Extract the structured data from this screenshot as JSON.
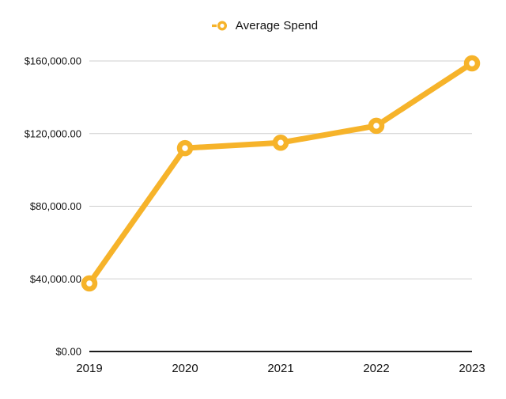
{
  "legend": {
    "items": [
      {
        "label": "Average Spend",
        "color": "#F6B32A"
      }
    ]
  },
  "chart_data": {
    "type": "line",
    "title": "",
    "xlabel": "",
    "ylabel": "",
    "categories": [
      "2019",
      "2020",
      "2021",
      "2022",
      "2023"
    ],
    "series": [
      {
        "name": "Average Spend",
        "values": [
          37500,
          112000,
          115000,
          124300,
          158700
        ],
        "color": "#F6B32A",
        "marker": "open-circle"
      }
    ],
    "ylim": [
      0,
      160000
    ],
    "y_ticks": [
      {
        "value": 0,
        "label": "$0.00"
      },
      {
        "value": 40000,
        "label": "$40,000.00"
      },
      {
        "value": 80000,
        "label": "$80,000.00"
      },
      {
        "value": 120000,
        "label": "$120,000.00"
      },
      {
        "value": 160000,
        "label": "$160,000.00"
      }
    ],
    "grid": true,
    "legend_position": "top-center"
  },
  "style": {
    "line_color": "#F6B32A",
    "marker_fill": "#ffffff",
    "gridline_color": "#CFCFCF",
    "axis_color": "#1C1C1C",
    "text_color": "#111111",
    "background": "#ffffff"
  }
}
